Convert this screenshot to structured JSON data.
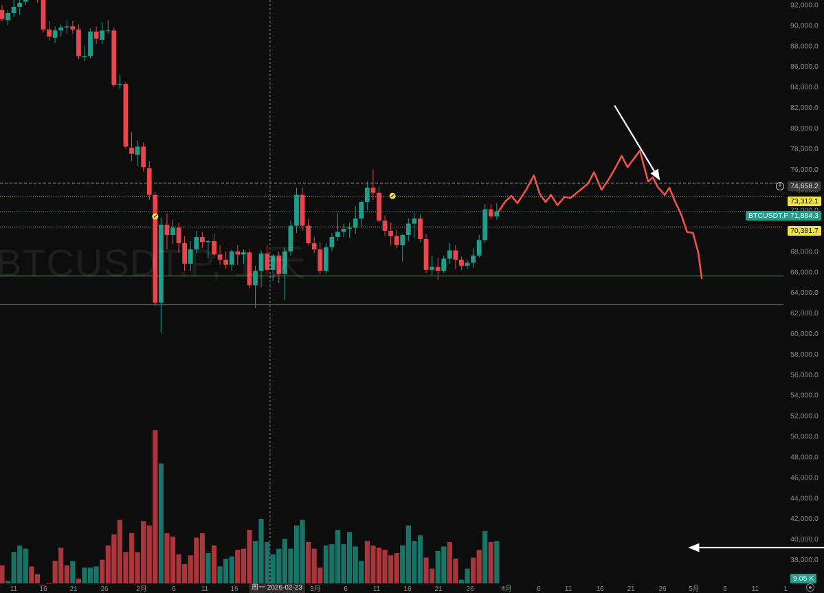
{
  "watermark": "BTCUSDT.P, 1 天",
  "crosshair_date": "周一 2026-02-23",
  "price_tags": {
    "last_close": "74,658.2",
    "level_high": "73,312.1",
    "symbol_label": "BTCUSDT.P",
    "current_price": "71,884.3",
    "level_low": "70,381.7",
    "volume": "9.05 K"
  },
  "colors": {
    "background": "#0d0d0d",
    "up": "#1f9c8a",
    "down": "#e8454d",
    "forecast": "#f0514d",
    "support_lines": "#3c9d3c",
    "level_dotted": "#b8b84a",
    "axis_text": "#8a8a8a"
  },
  "icons": [
    "plus-circle-icon",
    "settings-icon",
    "annotation-marker-icon",
    "arrow-icon"
  ],
  "chart_data": {
    "type": "candlestick",
    "symbol": "BTCUSDT.P",
    "interval": "1 天",
    "y_axis": {
      "ticks": [
        "38,000.0",
        "40,000.0",
        "42,000.0",
        "44,000.0",
        "46,000.0",
        "48,000.0",
        "50,000.0",
        "52,000.0",
        "54,000.0",
        "56,000.0",
        "58,000.0",
        "60,000.0",
        "62,000.0",
        "64,000.0",
        "66,000.0",
        "68,000.0",
        "70,000.0",
        "72,000.0",
        "74,000.0",
        "76,000.0",
        "78,000.0",
        "80,000.0",
        "82,000.0",
        "84,000.0",
        "86,000.0",
        "88,000.0",
        "90,000.0",
        "92,000.0"
      ],
      "range": [
        37000,
        92500
      ]
    },
    "x_axis": {
      "ticks": [
        "11",
        "16",
        "21",
        "26",
        "2月",
        "6",
        "11",
        "16",
        "21",
        "3月",
        "6",
        "11",
        "16",
        "21",
        "26",
        "4月",
        "6",
        "11",
        "16",
        "21",
        "26",
        "5月",
        "6",
        "11",
        "1"
      ]
    },
    "candles": [
      {
        "o": 91500,
        "h": 92000,
        "l": 90400,
        "c": 90600
      },
      {
        "o": 90500,
        "h": 91500,
        "l": 90000,
        "c": 91200
      },
      {
        "o": 91200,
        "h": 92600,
        "l": 90800,
        "c": 91800
      },
      {
        "o": 91800,
        "h": 92600,
        "l": 91000,
        "c": 92200
      },
      {
        "o": 92300,
        "h": 95000,
        "l": 92000,
        "c": 93500
      },
      {
        "o": 93500,
        "h": 94500,
        "l": 92600,
        "c": 93500
      },
      {
        "o": 93500,
        "h": 93800,
        "l": 92200,
        "c": 92800
      },
      {
        "o": 92800,
        "h": 93500,
        "l": 89300,
        "c": 89600
      },
      {
        "o": 89600,
        "h": 90400,
        "l": 88500,
        "c": 88900
      },
      {
        "o": 88800,
        "h": 89900,
        "l": 88300,
        "c": 89500
      },
      {
        "o": 89500,
        "h": 90100,
        "l": 88900,
        "c": 89800
      },
      {
        "o": 89800,
        "h": 90500,
        "l": 89200,
        "c": 89900
      },
      {
        "o": 89900,
        "h": 90400,
        "l": 89200,
        "c": 89600
      },
      {
        "o": 89600,
        "h": 90100,
        "l": 86700,
        "c": 87000
      },
      {
        "o": 86900,
        "h": 88000,
        "l": 86500,
        "c": 87000
      },
      {
        "o": 87000,
        "h": 89700,
        "l": 86800,
        "c": 89400
      },
      {
        "o": 89400,
        "h": 89900,
        "l": 88200,
        "c": 88700
      },
      {
        "o": 88600,
        "h": 90300,
        "l": 88200,
        "c": 89500
      },
      {
        "o": 89500,
        "h": 90500,
        "l": 89200,
        "c": 89500
      },
      {
        "o": 89500,
        "h": 89800,
        "l": 84000,
        "c": 84200
      },
      {
        "o": 84200,
        "h": 85200,
        "l": 83800,
        "c": 84300
      },
      {
        "o": 84300,
        "h": 84500,
        "l": 78000,
        "c": 78200
      },
      {
        "o": 78100,
        "h": 79600,
        "l": 76800,
        "c": 77500
      },
      {
        "o": 77400,
        "h": 78800,
        "l": 76300,
        "c": 78200
      },
      {
        "o": 78200,
        "h": 78600,
        "l": 75800,
        "c": 76200
      },
      {
        "o": 76100,
        "h": 76800,
        "l": 73000,
        "c": 73500
      },
      {
        "o": 73500,
        "h": 73800,
        "l": 62700,
        "c": 63000
      },
      {
        "o": 63000,
        "h": 71300,
        "l": 60000,
        "c": 70600
      },
      {
        "o": 70600,
        "h": 71700,
        "l": 68200,
        "c": 69600
      },
      {
        "o": 69600,
        "h": 71100,
        "l": 68700,
        "c": 70300
      },
      {
        "o": 70300,
        "h": 70800,
        "l": 67900,
        "c": 68800
      },
      {
        "o": 68800,
        "h": 69500,
        "l": 66100,
        "c": 66800
      },
      {
        "o": 66800,
        "h": 69000,
        "l": 66100,
        "c": 68200
      },
      {
        "o": 68200,
        "h": 70000,
        "l": 67800,
        "c": 69400
      },
      {
        "o": 69400,
        "h": 69900,
        "l": 68300,
        "c": 68900
      },
      {
        "o": 68900,
        "h": 69100,
        "l": 67300,
        "c": 69000
      },
      {
        "o": 69000,
        "h": 69800,
        "l": 67400,
        "c": 67700
      },
      {
        "o": 67700,
        "h": 68600,
        "l": 66700,
        "c": 67200
      },
      {
        "o": 67200,
        "h": 68000,
        "l": 66300,
        "c": 66700
      },
      {
        "o": 66700,
        "h": 68200,
        "l": 66100,
        "c": 68000
      },
      {
        "o": 68000,
        "h": 68600,
        "l": 66700,
        "c": 67700
      },
      {
        "o": 67700,
        "h": 68200,
        "l": 66800,
        "c": 67900
      },
      {
        "o": 67900,
        "h": 68200,
        "l": 64400,
        "c": 64700
      },
      {
        "o": 64700,
        "h": 66600,
        "l": 62500,
        "c": 66100
      },
      {
        "o": 66100,
        "h": 68100,
        "l": 64500,
        "c": 67800
      },
      {
        "o": 67800,
        "h": 68600,
        "l": 65800,
        "c": 66200
      },
      {
        "o": 66200,
        "h": 67700,
        "l": 65100,
        "c": 67600
      },
      {
        "o": 67600,
        "h": 68000,
        "l": 64900,
        "c": 65800
      },
      {
        "o": 65800,
        "h": 68400,
        "l": 63300,
        "c": 68000
      },
      {
        "o": 68000,
        "h": 71000,
        "l": 67600,
        "c": 70500
      },
      {
        "o": 70500,
        "h": 74200,
        "l": 69800,
        "c": 73500
      },
      {
        "o": 73500,
        "h": 74200,
        "l": 70000,
        "c": 70500
      },
      {
        "o": 70500,
        "h": 71200,
        "l": 68600,
        "c": 68800
      },
      {
        "o": 68800,
        "h": 69400,
        "l": 67800,
        "c": 68200
      },
      {
        "o": 68200,
        "h": 68900,
        "l": 65800,
        "c": 66100
      },
      {
        "o": 66100,
        "h": 68800,
        "l": 65800,
        "c": 68400
      },
      {
        "o": 68400,
        "h": 69800,
        "l": 68000,
        "c": 69400
      },
      {
        "o": 69400,
        "h": 71700,
        "l": 69000,
        "c": 69900
      },
      {
        "o": 69900,
        "h": 70700,
        "l": 69400,
        "c": 70200
      },
      {
        "o": 70200,
        "h": 70800,
        "l": 69300,
        "c": 70300
      },
      {
        "o": 70300,
        "h": 72400,
        "l": 69700,
        "c": 71200
      },
      {
        "o": 71200,
        "h": 73000,
        "l": 70400,
        "c": 72800
      },
      {
        "o": 72800,
        "h": 74800,
        "l": 72000,
        "c": 74200
      },
      {
        "o": 74200,
        "h": 76000,
        "l": 73000,
        "c": 73700
      },
      {
        "o": 73700,
        "h": 74300,
        "l": 70800,
        "c": 71000
      },
      {
        "o": 71000,
        "h": 71500,
        "l": 69500,
        "c": 70000
      },
      {
        "o": 70000,
        "h": 70800,
        "l": 68600,
        "c": 69500
      },
      {
        "o": 69500,
        "h": 70100,
        "l": 68300,
        "c": 68600
      },
      {
        "o": 68600,
        "h": 69700,
        "l": 67000,
        "c": 69600
      },
      {
        "o": 69600,
        "h": 71200,
        "l": 69000,
        "c": 70700
      },
      {
        "o": 70700,
        "h": 71700,
        "l": 69300,
        "c": 71200
      },
      {
        "o": 71200,
        "h": 71600,
        "l": 68900,
        "c": 69200
      },
      {
        "o": 69200,
        "h": 69700,
        "l": 65900,
        "c": 66200
      },
      {
        "o": 66200,
        "h": 67600,
        "l": 65700,
        "c": 66500
      },
      {
        "o": 66500,
        "h": 67400,
        "l": 65200,
        "c": 66100
      },
      {
        "o": 66100,
        "h": 67600,
        "l": 65900,
        "c": 67300
      },
      {
        "o": 67300,
        "h": 68800,
        "l": 66800,
        "c": 68100
      },
      {
        "o": 68100,
        "h": 68600,
        "l": 66300,
        "c": 67200
      },
      {
        "o": 67200,
        "h": 67500,
        "l": 66200,
        "c": 66600
      },
      {
        "o": 66600,
        "h": 67200,
        "l": 66300,
        "c": 66900
      },
      {
        "o": 66900,
        "h": 68300,
        "l": 66400,
        "c": 67600
      },
      {
        "o": 67600,
        "h": 69600,
        "l": 67400,
        "c": 69100
      },
      {
        "o": 69100,
        "h": 72600,
        "l": 68800,
        "c": 72100
      },
      {
        "o": 72100,
        "h": 72600,
        "l": 71100,
        "c": 71400
      },
      {
        "o": 71400,
        "h": 72700,
        "l": 71100,
        "c": 71900
      }
    ],
    "volume": {
      "range": [
        37800,
        53500
      ],
      "bars": [
        {
          "v": 40300,
          "up": false
        },
        {
          "v": 38900,
          "up": true
        },
        {
          "v": 41500,
          "up": true
        },
        {
          "v": 42100,
          "up": true
        },
        {
          "v": 41800,
          "up": true
        },
        {
          "v": 40200,
          "up": false
        },
        {
          "v": 39500,
          "up": false
        },
        {
          "v": 38500,
          "up": false
        },
        {
          "v": 38700,
          "up": false
        },
        {
          "v": 40700,
          "up": false
        },
        {
          "v": 41900,
          "up": false
        },
        {
          "v": 40300,
          "up": false
        },
        {
          "v": 40700,
          "up": true
        },
        {
          "v": 39100,
          "up": false
        },
        {
          "v": 40100,
          "up": true
        },
        {
          "v": 40100,
          "up": true
        },
        {
          "v": 40200,
          "up": true
        },
        {
          "v": 40800,
          "up": false
        },
        {
          "v": 42100,
          "up": false
        },
        {
          "v": 43100,
          "up": false
        },
        {
          "v": 44400,
          "up": false
        },
        {
          "v": 41500,
          "up": false
        },
        {
          "v": 43200,
          "up": false
        },
        {
          "v": 41500,
          "up": false
        },
        {
          "v": 44300,
          "up": false
        },
        {
          "v": 43900,
          "up": false
        },
        {
          "v": 52500,
          "up": false
        },
        {
          "v": 49500,
          "up": true
        },
        {
          "v": 43200,
          "up": false
        },
        {
          "v": 42900,
          "up": false
        },
        {
          "v": 41300,
          "up": false
        },
        {
          "v": 40400,
          "up": false
        },
        {
          "v": 41200,
          "up": false
        },
        {
          "v": 42800,
          "up": false
        },
        {
          "v": 43200,
          "up": false
        },
        {
          "v": 41400,
          "up": true
        },
        {
          "v": 42100,
          "up": false
        },
        {
          "v": 40200,
          "up": true
        },
        {
          "v": 40900,
          "up": true
        },
        {
          "v": 41100,
          "up": true
        },
        {
          "v": 41700,
          "up": false
        },
        {
          "v": 41800,
          "up": false
        },
        {
          "v": 43500,
          "up": false
        },
        {
          "v": 42500,
          "up": true
        },
        {
          "v": 44500,
          "up": true
        },
        {
          "v": 42400,
          "up": true
        },
        {
          "v": 41300,
          "up": true
        },
        {
          "v": 41800,
          "up": true
        },
        {
          "v": 42700,
          "up": true
        },
        {
          "v": 41800,
          "up": true
        },
        {
          "v": 43900,
          "up": true
        },
        {
          "v": 44400,
          "up": true
        },
        {
          "v": 42400,
          "up": false
        },
        {
          "v": 41800,
          "up": false
        },
        {
          "v": 40100,
          "up": false
        },
        {
          "v": 42100,
          "up": true
        },
        {
          "v": 42200,
          "up": true
        },
        {
          "v": 43500,
          "up": true
        },
        {
          "v": 42200,
          "up": true
        },
        {
          "v": 43300,
          "up": true
        },
        {
          "v": 42000,
          "up": true
        },
        {
          "v": 40700,
          "up": true
        },
        {
          "v": 42500,
          "up": false
        },
        {
          "v": 42100,
          "up": false
        },
        {
          "v": 41900,
          "up": false
        },
        {
          "v": 41700,
          "up": false
        },
        {
          "v": 41200,
          "up": false
        },
        {
          "v": 41400,
          "up": false
        },
        {
          "v": 42100,
          "up": true
        },
        {
          "v": 43900,
          "up": true
        },
        {
          "v": 42500,
          "up": true
        },
        {
          "v": 43000,
          "up": true
        },
        {
          "v": 41000,
          "up": false
        },
        {
          "v": 40000,
          "up": false
        },
        {
          "v": 41600,
          "up": true
        },
        {
          "v": 42000,
          "up": true
        },
        {
          "v": 42400,
          "up": false
        },
        {
          "v": 40900,
          "up": false
        },
        {
          "v": 39000,
          "up": true
        },
        {
          "v": 40000,
          "up": true
        },
        {
          "v": 41000,
          "up": false
        },
        {
          "v": 41700,
          "up": false
        },
        {
          "v": 43400,
          "up": true
        },
        {
          "v": 42400,
          "up": false
        },
        {
          "v": 42500,
          "up": true
        },
        {
          "v": 38300,
          "up": true
        }
      ]
    },
    "forecast_path": [
      {
        "i": 84.3,
        "p": 71900
      },
      {
        "i": 85.5,
        "p": 72900
      },
      {
        "i": 86.5,
        "p": 73400
      },
      {
        "i": 87.5,
        "p": 72700
      },
      {
        "i": 89,
        "p": 74000
      },
      {
        "i": 90.3,
        "p": 75400
      },
      {
        "i": 91.3,
        "p": 73600
      },
      {
        "i": 92.3,
        "p": 72800
      },
      {
        "i": 93.2,
        "p": 73500
      },
      {
        "i": 94.3,
        "p": 72500
      },
      {
        "i": 95.5,
        "p": 73300
      },
      {
        "i": 96.5,
        "p": 73200
      },
      {
        "i": 97.8,
        "p": 73800
      },
      {
        "i": 99.5,
        "p": 74600
      },
      {
        "i": 100.5,
        "p": 75700
      },
      {
        "i": 101.8,
        "p": 74000
      },
      {
        "i": 103,
        "p": 75000
      },
      {
        "i": 104.2,
        "p": 76200
      },
      {
        "i": 105.2,
        "p": 77300
      },
      {
        "i": 106.2,
        "p": 76200
      },
      {
        "i": 107.5,
        "p": 77200
      },
      {
        "i": 108.3,
        "p": 77800
      },
      {
        "i": 109.7,
        "p": 74800
      },
      {
        "i": 110.5,
        "p": 75200
      },
      {
        "i": 111.3,
        "p": 74300
      },
      {
        "i": 112.5,
        "p": 73500
      },
      {
        "i": 113.3,
        "p": 74200
      },
      {
        "i": 114.3,
        "p": 72800
      },
      {
        "i": 115.3,
        "p": 71600
      },
      {
        "i": 116.3,
        "p": 69900
      },
      {
        "i": 117.3,
        "p": 69800
      },
      {
        "i": 118.2,
        "p": 67900
      },
      {
        "i": 118.8,
        "p": 65400
      }
    ],
    "horizontal_levels": [
      {
        "price": 74658.2,
        "style": "dashed",
        "color": "#9a9a9a"
      },
      {
        "price": 73312.1,
        "style": "dotted",
        "color": "#b8b84a"
      },
      {
        "price": 71884.3,
        "style": "dotted",
        "color": "#1f9c8a"
      },
      {
        "price": 70381.7,
        "style": "dotted",
        "color": "#b8b84a"
      },
      {
        "price": 65600,
        "style": "solid",
        "color": "#3c9d3c"
      },
      {
        "price": 62800,
        "style": "solid",
        "color": "#3c9d3c"
      }
    ],
    "annotation_markers": [
      {
        "i": 26,
        "p": 71400
      },
      {
        "i": 66.3,
        "p": 73400
      }
    ],
    "arrows": [
      {
        "name": "price-arrow",
        "from": {
          "i": 104,
          "p": 82200
        },
        "to": {
          "i": 111.7,
          "p": 74900
        }
      },
      {
        "name": "volume-arrow",
        "from": {
          "i": 150.5,
          "v": 41900
        },
        "to": {
          "i": 116.5,
          "v": 41900
        }
      }
    ],
    "crosshair_index": 45.5,
    "grid": false,
    "legend": "none"
  }
}
